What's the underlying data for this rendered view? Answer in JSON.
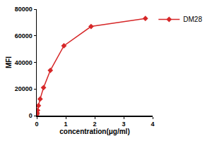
{
  "chart_data": {
    "type": "line",
    "x_label": "concentration(μg/ml)",
    "y_label": "MFI",
    "x": [
      0.0073,
      0.0146,
      0.0293,
      0.0586,
      0.117,
      0.234,
      0.469,
      0.9375,
      1.875,
      3.75
    ],
    "series": [
      {
        "name": "DM28",
        "color": "#d62728",
        "marker": "diamond",
        "values": [
          1000,
          2000,
          4000,
          7500,
          12500,
          21000,
          34000,
          52500,
          67000,
          73000
        ]
      }
    ],
    "xlim": [
      0,
      4
    ],
    "xticks": [
      0,
      1,
      2,
      3,
      4
    ],
    "ylim": [
      0,
      80000
    ],
    "yticks": [
      0,
      20000,
      40000,
      60000,
      80000
    ],
    "grid": false,
    "legend": "upper right"
  }
}
